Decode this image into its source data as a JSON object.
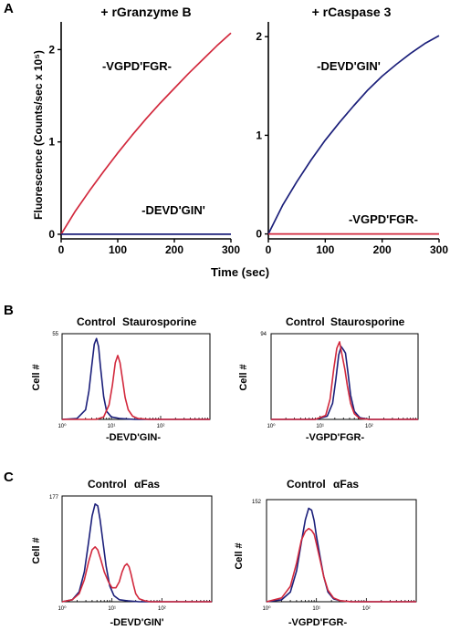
{
  "colors": {
    "red": "#d2283c",
    "blue": "#1b1f7a",
    "axis": "#000000"
  },
  "panel_labels": [
    "A",
    "B",
    "C"
  ],
  "chart_data": [
    {
      "type": "line",
      "panel": "A",
      "title": "+ rGranzyme B",
      "ylabel": "Fluorescence (Counts/sec x 10⁵)",
      "xlabel": "",
      "xlim": [
        0,
        300
      ],
      "ylim": [
        -0.05,
        2.3
      ],
      "xticks": [
        0,
        100,
        200,
        300
      ],
      "yticks": [
        0,
        1,
        2
      ],
      "series": [
        {
          "name": "-VGPD'FGR-",
          "color": "red",
          "x": [
            0,
            25,
            50,
            75,
            100,
            125,
            150,
            175,
            200,
            225,
            250,
            275,
            300
          ],
          "y": [
            0.0,
            0.25,
            0.47,
            0.68,
            0.88,
            1.07,
            1.25,
            1.42,
            1.58,
            1.74,
            1.89,
            2.04,
            2.18
          ]
        },
        {
          "name": "-DEVD'GIN'",
          "color": "blue",
          "x": [
            0,
            50,
            100,
            150,
            200,
            250,
            300
          ],
          "y": [
            0.0,
            0.0,
            0.0,
            0.0,
            0.0,
            0.0,
            0.0
          ]
        }
      ]
    },
    {
      "type": "line",
      "panel": "A",
      "title": "+ rCaspase 3",
      "ylabel": "",
      "xlabel": "Time (sec)",
      "xlim": [
        0,
        300
      ],
      "ylim": [
        -0.05,
        2.15
      ],
      "xticks": [
        0,
        100,
        200,
        300
      ],
      "yticks": [
        0,
        1,
        2
      ],
      "series": [
        {
          "name": "-DEVD'GIN'",
          "color": "blue",
          "x": [
            0,
            25,
            50,
            75,
            100,
            125,
            150,
            175,
            200,
            225,
            250,
            275,
            300
          ],
          "y": [
            0.0,
            0.29,
            0.53,
            0.75,
            0.95,
            1.13,
            1.3,
            1.46,
            1.6,
            1.72,
            1.83,
            1.93,
            2.01
          ]
        },
        {
          "name": "-VGPD'FGR-",
          "color": "red",
          "x": [
            0,
            50,
            100,
            150,
            200,
            250,
            300
          ],
          "y": [
            0.0,
            0.0,
            0.0,
            0.0,
            0.0,
            0.0,
            0.0
          ]
        }
      ]
    },
    {
      "type": "line",
      "panel": "B",
      "xscale": "log",
      "xlim": [
        1,
        1000
      ],
      "ylabel": "Cell #",
      "xlabel": "-DEVD'GIN-",
      "ymax_label": "55",
      "xtick_labels": [
        "10⁰",
        "10¹",
        "10²"
      ],
      "legend": [
        "Control",
        "Staurosporine"
      ],
      "series": [
        {
          "name": "Control",
          "color": "blue",
          "x": [
            1,
            2,
            3,
            3.5,
            4,
            4.5,
            5,
            5.5,
            6,
            7,
            8,
            10,
            15,
            30,
            1000
          ],
          "y": [
            0,
            0.01,
            0.12,
            0.35,
            0.66,
            0.93,
            1.0,
            0.9,
            0.66,
            0.28,
            0.1,
            0.03,
            0.01,
            0.0,
            0.0
          ]
        },
        {
          "name": "Staurosporine",
          "color": "red",
          "x": [
            1,
            5,
            7,
            9,
            10.5,
            12,
            13.5,
            15,
            17,
            19,
            22,
            27,
            35,
            60,
            1000
          ],
          "y": [
            0,
            0.0,
            0.03,
            0.18,
            0.42,
            0.7,
            0.79,
            0.7,
            0.48,
            0.27,
            0.12,
            0.04,
            0.01,
            0.0,
            0.0
          ]
        }
      ]
    },
    {
      "type": "line",
      "panel": "B",
      "xscale": "log",
      "xlim": [
        1,
        1000
      ],
      "ylabel": "Cell #",
      "xlabel": "-VGPD'FGR-",
      "ymax_label": "94",
      "xtick_labels": [
        "10⁰",
        "10¹",
        "10²"
      ],
      "legend": [
        "Control",
        "Staurosporine"
      ],
      "series": [
        {
          "name": "Control",
          "color": "blue",
          "x": [
            1,
            8,
            14,
            18,
            21,
            24,
            27,
            30,
            33,
            37,
            42,
            50,
            65,
            100,
            1000
          ],
          "y": [
            0,
            0.0,
            0.04,
            0.2,
            0.5,
            0.8,
            0.9,
            0.86,
            0.82,
            0.58,
            0.3,
            0.1,
            0.02,
            0.0,
            0.0
          ]
        },
        {
          "name": "Staurosporine",
          "color": "red",
          "x": [
            1,
            8,
            13,
            16,
            19,
            22,
            25,
            28,
            32,
            36,
            42,
            50,
            65,
            100,
            1000
          ],
          "y": [
            0,
            0.0,
            0.05,
            0.25,
            0.62,
            0.88,
            0.96,
            0.8,
            0.62,
            0.42,
            0.2,
            0.07,
            0.01,
            0.0,
            0.0
          ]
        }
      ]
    },
    {
      "type": "line",
      "panel": "C",
      "xscale": "log",
      "xlim": [
        1,
        1000
      ],
      "ylabel": "Cell #",
      "xlabel": "-DEVD'GIN'",
      "ymax_label": "177",
      "xtick_labels": [
        "10⁰",
        "10¹",
        "10²"
      ],
      "legend": [
        "Control",
        "αFas"
      ],
      "series": [
        {
          "name": "Control",
          "color": "blue",
          "x": [
            1,
            1.6,
            2.2,
            2.8,
            3.4,
            4,
            4.6,
            5.2,
            5.8,
            6.6,
            7.6,
            9,
            11,
            14,
            20,
            35,
            1000
          ],
          "y": [
            0,
            0.02,
            0.1,
            0.3,
            0.6,
            0.86,
            0.98,
            0.96,
            0.82,
            0.6,
            0.36,
            0.16,
            0.06,
            0.02,
            0.01,
            0.0,
            0.0
          ]
        },
        {
          "name": "αFas",
          "color": "red",
          "x": [
            1,
            1.6,
            2.2,
            2.8,
            3.4,
            4,
            4.6,
            5.2,
            6,
            7,
            8.5,
            10,
            12,
            14,
            16,
            18,
            20,
            22,
            24,
            27,
            30,
            35,
            45,
            60,
            1000
          ],
          "y": [
            0,
            0.02,
            0.08,
            0.22,
            0.4,
            0.52,
            0.55,
            0.52,
            0.42,
            0.3,
            0.2,
            0.14,
            0.14,
            0.2,
            0.3,
            0.36,
            0.38,
            0.35,
            0.28,
            0.17,
            0.08,
            0.03,
            0.01,
            0.0,
            0.0
          ]
        }
      ]
    },
    {
      "type": "line",
      "panel": "C",
      "xscale": "log",
      "xlim": [
        1,
        1000
      ],
      "ylabel": "Cell #",
      "xlabel": "-VGPD'FGR-",
      "ymax_label": "152",
      "xtick_labels": [
        "10⁰",
        "10¹",
        "10²"
      ],
      "legend": [
        "Control",
        "αFas"
      ],
      "series": [
        {
          "name": "Control",
          "color": "blue",
          "x": [
            1,
            2,
            3,
            4,
            5,
            6,
            7,
            8,
            9,
            10,
            12,
            14,
            17,
            22,
            30,
            50,
            1000
          ],
          "y": [
            0,
            0.02,
            0.1,
            0.32,
            0.62,
            0.85,
            0.97,
            0.95,
            0.84,
            0.68,
            0.45,
            0.26,
            0.1,
            0.03,
            0.01,
            0.0,
            0.0
          ]
        },
        {
          "name": "αFas",
          "color": "red",
          "x": [
            1,
            2,
            3,
            4,
            5,
            6,
            7,
            8,
            9,
            10,
            12,
            14,
            17,
            22,
            30,
            50,
            1000
          ],
          "y": [
            0,
            0.04,
            0.16,
            0.4,
            0.64,
            0.73,
            0.76,
            0.74,
            0.7,
            0.6,
            0.42,
            0.26,
            0.12,
            0.04,
            0.01,
            0.0,
            0.0
          ]
        }
      ]
    }
  ]
}
